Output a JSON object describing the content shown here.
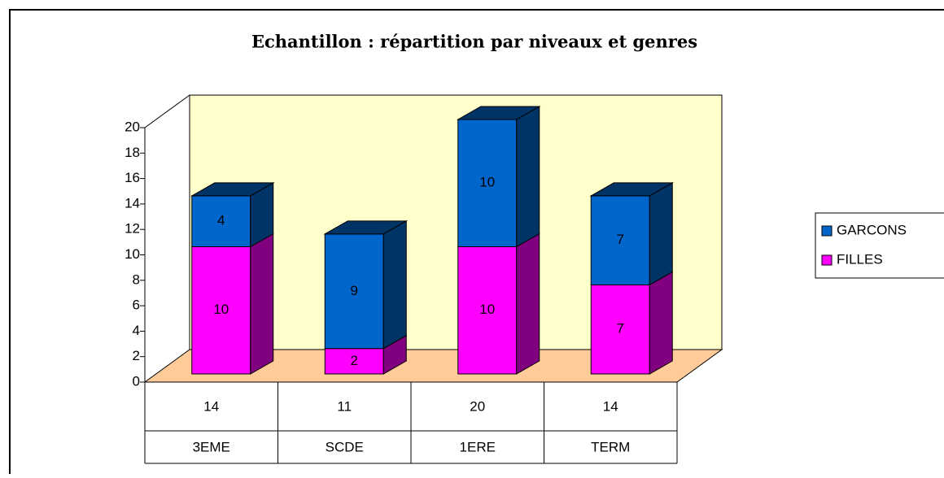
{
  "chart_data": {
    "type": "bar3d_stacked",
    "title": "Echantillon : répartition par niveaux et genres",
    "categories": [
      "3EME",
      "SCDE",
      "1ERE",
      "TERM"
    ],
    "totals": [
      14,
      11,
      20,
      14
    ],
    "series": [
      {
        "name": "FILLES",
        "color": "#ff00ff",
        "side_color": "#800080",
        "values": [
          10,
          2,
          10,
          7
        ]
      },
      {
        "name": "GARCONS",
        "color": "#0066cc",
        "side_color": "#003366",
        "values": [
          4,
          9,
          10,
          7
        ]
      }
    ],
    "ylim": [
      0,
      20
    ],
    "yticks": [
      0,
      2,
      4,
      6,
      8,
      10,
      12,
      14,
      16,
      18,
      20
    ],
    "wall_color": "#ffffcc",
    "floor_color": "#ffcc99",
    "legend": "right"
  }
}
